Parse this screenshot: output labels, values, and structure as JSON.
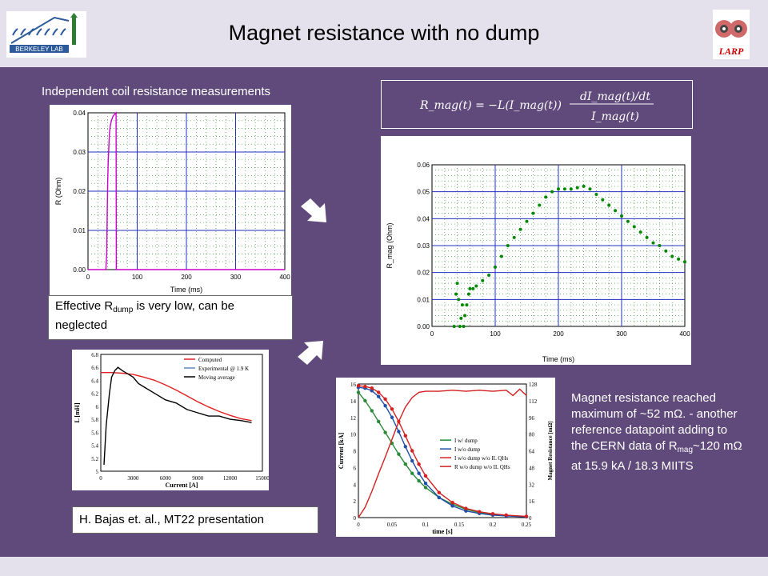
{
  "slide": {
    "title": "Magnet resistance with no dump",
    "left_caption": "Independent coil resistance measurements",
    "equation": {
      "lhs": "R_mag(t) = −L(I_mag(t))",
      "numerator": "dI_mag(t)/dt",
      "denominator": "I_mag(t)"
    },
    "rdump_note": {
      "prefix": "Effective R",
      "sub": "dump",
      "suffix": " is very low, can be neglected"
    },
    "citation": "H. Bajas et. al., MT22 presentation",
    "note": {
      "line1": "Magnet resistance reached maximum of ~52 mΩ. -  another reference datapoint adding to the CERN data of R",
      "sub": "mag",
      "line2": "~120 mΩ at 15.9 kA / 18.3 MIITS"
    }
  },
  "logos": {
    "left": "berkeley-lab-logo",
    "right": "larp-logo",
    "left_text": "BERKELEY LAB",
    "right_text": "LARP"
  },
  "chart_data": [
    {
      "id": "coil-resistance",
      "type": "line",
      "xlabel": "Time (ms)",
      "ylabel": "R (Ohm)",
      "xlim": [
        -20,
        400
      ],
      "ylim": [
        0,
        0.04
      ],
      "xticks": [
        "0",
        "100",
        "200",
        "300",
        "400"
      ],
      "yticks": [
        "0.00",
        "0.01",
        "0.02",
        "0.03",
        "0.04"
      ],
      "grid": true,
      "series": [
        {
          "color": "#cc00cc",
          "x": [
            -20,
            18,
            20,
            21,
            22,
            23,
            24,
            25,
            26,
            28,
            30,
            33,
            36,
            40,
            40.5,
            400
          ],
          "y": [
            0,
            0,
            0.004,
            0.014,
            0.022,
            0.027,
            0.03,
            0.033,
            0.035,
            0.037,
            0.038,
            0.039,
            0.0395,
            0.04,
            0,
            0
          ]
        }
      ]
    },
    {
      "id": "magnet-resistance",
      "type": "scatter",
      "xlabel": "Time (ms)",
      "ylabel": "R_mag (Ohm)",
      "xlim": [
        0,
        400
      ],
      "ylim": [
        0,
        0.06
      ],
      "xticks": [
        "0",
        "100",
        "200",
        "300",
        "400"
      ],
      "yticks": [
        "0.00",
        "0.01",
        "0.02",
        "0.03",
        "0.04",
        "0.05",
        "0.06"
      ],
      "grid": true,
      "series": [
        {
          "color": "#008800",
          "x": [
            35,
            38,
            40,
            42,
            44,
            46,
            48,
            50,
            52,
            55,
            58,
            60,
            65,
            70,
            80,
            90,
            100,
            110,
            120,
            130,
            140,
            150,
            160,
            170,
            180,
            190,
            200,
            210,
            220,
            230,
            240,
            250,
            260,
            270,
            280,
            290,
            300,
            310,
            320,
            330,
            340,
            350,
            360,
            370,
            380,
            390,
            400
          ],
          "y": [
            0.0,
            0.012,
            0.016,
            0.01,
            0.0,
            0.003,
            0.008,
            0.0,
            0.004,
            0.008,
            0.012,
            0.014,
            0.014,
            0.015,
            0.017,
            0.019,
            0.022,
            0.026,
            0.03,
            0.033,
            0.036,
            0.039,
            0.042,
            0.045,
            0.048,
            0.05,
            0.051,
            0.051,
            0.051,
            0.0515,
            0.052,
            0.051,
            0.049,
            0.047,
            0.045,
            0.043,
            0.041,
            0.039,
            0.037,
            0.035,
            0.033,
            0.031,
            0.03,
            0.028,
            0.026,
            0.025,
            0.024
          ]
        }
      ]
    },
    {
      "id": "inductance",
      "type": "line",
      "xlabel": "Current [A]",
      "ylabel": "L [mH]",
      "xlim": [
        0,
        15000
      ],
      "ylim": [
        5,
        6.8
      ],
      "xticks": [
        "0",
        "3000",
        "6000",
        "9000",
        "12000",
        "15000"
      ],
      "yticks": [
        "5",
        "5.2",
        "5.4",
        "5.6",
        "5.8",
        "6",
        "6.2",
        "6.4",
        "6.6",
        "6.8"
      ],
      "legend": [
        "Computed",
        "Experimental @ 1.9 K",
        "Moving average"
      ],
      "legend_position": "top-right",
      "series": [
        {
          "name": "Computed",
          "color": "#e02020",
          "x": [
            0,
            1000,
            2000,
            3000,
            4000,
            5000,
            6000,
            7000,
            8000,
            9000,
            10000,
            11000,
            12000,
            13000,
            14000
          ],
          "y": [
            6.52,
            6.52,
            6.51,
            6.49,
            6.45,
            6.4,
            6.33,
            6.25,
            6.16,
            6.07,
            5.99,
            5.92,
            5.86,
            5.81,
            5.78
          ]
        },
        {
          "name": "Moving average",
          "color": "#000000",
          "x": [
            300,
            500,
            800,
            1000,
            1300,
            1600,
            2000,
            2500,
            3000,
            3500,
            4000,
            5000,
            6000,
            7000,
            8000,
            9000,
            10000,
            11000,
            12000,
            13000,
            14000
          ],
          "y": [
            5.1,
            5.7,
            6.2,
            6.45,
            6.55,
            6.6,
            6.55,
            6.5,
            6.45,
            6.35,
            6.3,
            6.2,
            6.1,
            6.05,
            5.95,
            5.9,
            5.85,
            5.85,
            5.8,
            5.78,
            5.75
          ]
        }
      ]
    },
    {
      "id": "current-decay",
      "type": "line",
      "xlabel": "time [s]",
      "ylabel": "Current [kA]",
      "y2label": "Magnet Resistance [mΩ]",
      "xlim": [
        0,
        0.25
      ],
      "ylim": [
        0,
        16
      ],
      "y2lim": [
        0,
        128
      ],
      "xticks": [
        "0",
        "0.05",
        "0.1",
        "0.15",
        "0.2",
        "0.25"
      ],
      "yticks": [
        "0",
        "2",
        "4",
        "6",
        "8",
        "10",
        "12",
        "14",
        "16"
      ],
      "y2ticks": [
        "0",
        "16",
        "32",
        "48",
        "64",
        "80",
        "96",
        "112",
        "128"
      ],
      "legend": [
        "I w/ dump",
        "I w/o dump",
        "I  w/o dump w/o IL QHs",
        "R w/o dump w/o IL QHs"
      ],
      "legend_position": "center-right",
      "series": [
        {
          "name": "I w/ dump",
          "color": "#2a8a3a",
          "x": [
            0,
            0.01,
            0.02,
            0.03,
            0.04,
            0.05,
            0.06,
            0.07,
            0.08,
            0.09,
            0.1,
            0.12,
            0.14,
            0.16,
            0.18,
            0.2,
            0.22,
            0.25
          ],
          "y": [
            15.0,
            14.0,
            12.8,
            11.5,
            10.2,
            8.9,
            7.6,
            6.4,
            5.3,
            4.4,
            3.6,
            2.4,
            1.6,
            1.0,
            0.6,
            0.4,
            0.25,
            0.1
          ]
        },
        {
          "name": "I w/o dump",
          "color": "#1f4fa8",
          "x": [
            0,
            0.01,
            0.02,
            0.03,
            0.04,
            0.05,
            0.06,
            0.07,
            0.08,
            0.09,
            0.1,
            0.12,
            0.14,
            0.16,
            0.18,
            0.2,
            0.22,
            0.25
          ],
          "y": [
            15.6,
            15.5,
            15.2,
            14.5,
            13.4,
            12.0,
            10.3,
            8.5,
            6.8,
            5.3,
            4.1,
            2.4,
            1.4,
            0.8,
            0.5,
            0.3,
            0.2,
            0.1
          ]
        },
        {
          "name": "I  w/o dump w/o IL QHs",
          "color": "#d42020",
          "x": [
            0,
            0.01,
            0.02,
            0.03,
            0.04,
            0.05,
            0.06,
            0.07,
            0.08,
            0.09,
            0.1,
            0.12,
            0.14,
            0.16,
            0.18,
            0.2,
            0.22,
            0.25
          ],
          "y": [
            15.8,
            15.7,
            15.5,
            15.0,
            14.2,
            13.0,
            11.5,
            9.8,
            8.0,
            6.4,
            5.0,
            3.0,
            1.8,
            1.1,
            0.7,
            0.45,
            0.3,
            0.15
          ]
        },
        {
          "name": "R w/o dump w/o IL QHs",
          "color": "#d42020",
          "axis": "y2",
          "x": [
            0,
            0.01,
            0.02,
            0.03,
            0.04,
            0.05,
            0.06,
            0.07,
            0.08,
            0.09,
            0.1,
            0.12,
            0.14,
            0.16,
            0.18,
            0.2,
            0.22,
            0.23,
            0.24,
            0.25
          ],
          "y": [
            0,
            10,
            25,
            42,
            58,
            75,
            92,
            106,
            115,
            120,
            121,
            121,
            122,
            121,
            122,
            121,
            122,
            117,
            123,
            117
          ]
        }
      ]
    }
  ]
}
